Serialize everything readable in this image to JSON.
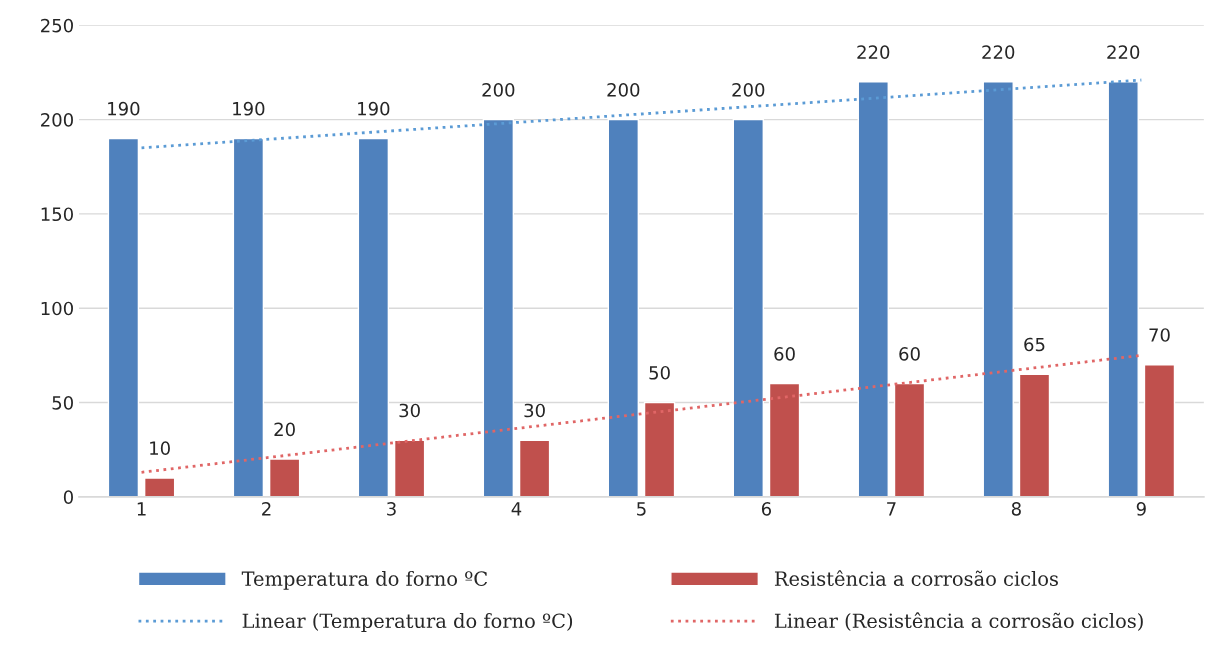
{
  "chart_data": {
    "type": "bar",
    "categories": [
      "1",
      "2",
      "3",
      "4",
      "5",
      "6",
      "7",
      "8",
      "9"
    ],
    "series": [
      {
        "name": "Temperatura do forno ºC",
        "color": "#4f81bd",
        "values": [
          190,
          190,
          190,
          200,
          200,
          200,
          220,
          220,
          220
        ],
        "value_labels": [
          "190",
          "190",
          "190",
          "200",
          "200",
          "200",
          "220",
          "220",
          "220"
        ]
      },
      {
        "name": "Resistência a corrosão ciclos",
        "color": "#c0504d",
        "values": [
          10,
          20,
          30,
          30,
          50,
          60,
          60,
          65,
          70
        ],
        "value_labels": [
          "10",
          "20",
          "30",
          "30",
          "50",
          "60",
          "60",
          "65",
          "70"
        ]
      },
      {
        "name": "Linear (Temperatura do forno ºC)",
        "type": "line",
        "color": "#5b9bd5",
        "line_style": "dotted",
        "x": [
          "1",
          "9"
        ],
        "values": [
          185,
          221
        ]
      },
      {
        "name": "Linear (Resistência a corrosão ciclos)",
        "type": "line",
        "color": "#e06666",
        "line_style": "dotted",
        "x": [
          "1",
          "9"
        ],
        "values": [
          13,
          75
        ]
      }
    ],
    "ylim": [
      0,
      250
    ],
    "yticks": [
      0,
      50,
      100,
      150,
      200,
      250
    ],
    "grid": "y",
    "legend": "bottom"
  }
}
